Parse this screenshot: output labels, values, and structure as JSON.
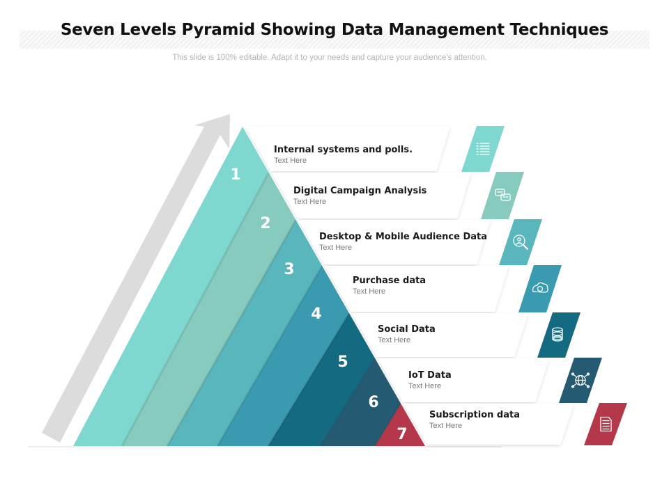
{
  "title": "Seven Levels Pyramid Showing Data Management Techniques",
  "subtitle": "This slide is 100% editable. Adapt it to your needs and capture your audience's attention.",
  "levels": [
    {
      "number": "1",
      "heading": "Internal systems and polls.",
      "text": "Text Here",
      "color": "#7ed8d0",
      "icon": "checklist-icon"
    },
    {
      "number": "2",
      "heading": "Digital Campaign Analysis",
      "text": "Text Here",
      "color": "#86cbbe",
      "icon": "chat-bubbles-icon"
    },
    {
      "number": "3",
      "heading": "Desktop & Mobile Audience Data",
      "text": "Text Here",
      "color": "#59b6bc",
      "icon": "magnifier-people-icon"
    },
    {
      "number": "4",
      "heading": "Purchase data",
      "text": "Text Here",
      "color": "#3a9bb0",
      "icon": "cloud-cycle-icon"
    },
    {
      "number": "5",
      "heading": "Social Data",
      "text": "Text Here",
      "color": "#146a80",
      "icon": "database-icon"
    },
    {
      "number": "6",
      "heading": "IoT Data",
      "text": "Text Here",
      "color": "#245a72",
      "icon": "network-globe-icon"
    },
    {
      "number": "7",
      "heading": "Subscription data",
      "text": "Text Here",
      "color": "#b5384a",
      "icon": "document-icon"
    }
  ]
}
